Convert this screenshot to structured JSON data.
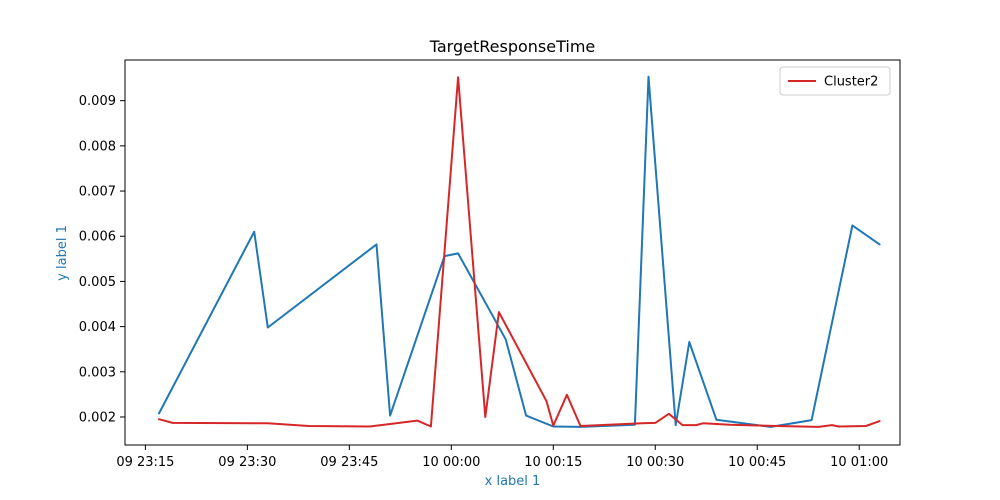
{
  "chart_data": {
    "type": "line",
    "title": "TargetResponseTime",
    "xlabel": "x label 1",
    "ylabel": "y label 1",
    "ylim": [
      0.00138,
      0.0099
    ],
    "xlim": [
      "09 23:12",
      "10 01:06"
    ],
    "x_ticks": [
      {
        "t": "09 23:15",
        "label": "09 23:15"
      },
      {
        "t": "09 23:30",
        "label": "09 23:30"
      },
      {
        "t": "09 23:45",
        "label": "09 23:45"
      },
      {
        "t": "10 00:00",
        "label": "10 00:00"
      },
      {
        "t": "10 00:15",
        "label": "10 00:15"
      },
      {
        "t": "10 00:30",
        "label": "10 00:30"
      },
      {
        "t": "10 00:45",
        "label": "10 00:45"
      },
      {
        "t": "10 01:00",
        "label": "10 01:00"
      }
    ],
    "y_ticks": [
      {
        "v": 0.002,
        "label": "0.002"
      },
      {
        "v": 0.003,
        "label": "0.003"
      },
      {
        "v": 0.004,
        "label": "0.004"
      },
      {
        "v": 0.005,
        "label": "0.005"
      },
      {
        "v": 0.006,
        "label": "0.006"
      },
      {
        "v": 0.007,
        "label": "0.007"
      },
      {
        "v": 0.008,
        "label": "0.008"
      },
      {
        "v": 0.009,
        "label": "0.009"
      }
    ],
    "grid": false,
    "legend": {
      "position": "top-right",
      "entries": [
        "Cluster2"
      ]
    },
    "series": [
      {
        "color": "#1f77b4",
        "points": [
          [
            "09 23:17",
            0.00208
          ],
          [
            "09 23:31",
            0.0061
          ],
          [
            "09 23:33",
            0.00398
          ],
          [
            "09 23:49",
            0.00582
          ],
          [
            "09 23:51",
            0.00203
          ],
          [
            "09 23:59",
            0.00556
          ],
          [
            "10 00:01",
            0.00562
          ],
          [
            "10 00:08",
            0.00372
          ],
          [
            "10 00:11",
            0.00203
          ],
          [
            "10 00:15",
            0.00179
          ],
          [
            "10 00:19",
            0.00178
          ],
          [
            "10 00:27",
            0.00183
          ],
          [
            "10 00:29",
            0.00953
          ],
          [
            "10 00:33",
            0.00182
          ],
          [
            "10 00:35",
            0.00366
          ],
          [
            "10 00:39",
            0.00194
          ],
          [
            "10 00:47",
            0.00178
          ],
          [
            "10 00:53",
            0.00193
          ],
          [
            "10 00:59",
            0.00624
          ],
          [
            "10 01:03",
            0.00582
          ]
        ]
      },
      {
        "name": "Cluster2",
        "color": "#d62728",
        "points": [
          [
            "09 23:17",
            0.00195
          ],
          [
            "09 23:19",
            0.00187
          ],
          [
            "09 23:33",
            0.00186
          ],
          [
            "09 23:39",
            0.0018
          ],
          [
            "09 23:48",
            0.00179
          ],
          [
            "09 23:55",
            0.00192
          ],
          [
            "09 23:57",
            0.00179
          ],
          [
            "10 00:01",
            0.00952
          ],
          [
            "10 00:05",
            0.002
          ],
          [
            "10 00:07",
            0.00432
          ],
          [
            "10 00:14",
            0.00235
          ],
          [
            "10 00:15",
            0.00181
          ],
          [
            "10 00:17",
            0.00249
          ],
          [
            "10 00:19",
            0.0018
          ],
          [
            "10 00:28",
            0.00186
          ],
          [
            "10 00:30",
            0.00187
          ],
          [
            "10 00:32",
            0.00207
          ],
          [
            "10 00:34",
            0.00182
          ],
          [
            "10 00:36",
            0.00182
          ],
          [
            "10 00:37",
            0.00186
          ],
          [
            "10 00:41",
            0.00183
          ],
          [
            "10 00:48",
            0.0018
          ],
          [
            "10 00:54",
            0.00178
          ],
          [
            "10 00:56",
            0.00182
          ],
          [
            "10 00:57",
            0.00179
          ],
          [
            "10 01:01",
            0.0018
          ],
          [
            "10 01:03",
            0.00191
          ]
        ]
      }
    ]
  }
}
